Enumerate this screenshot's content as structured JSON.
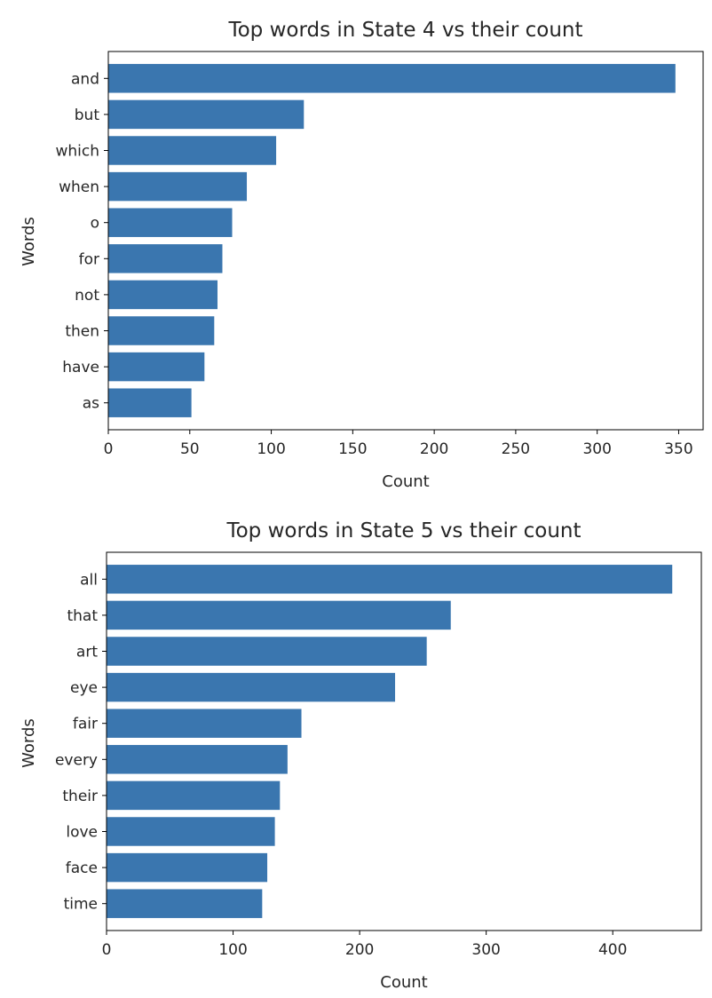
{
  "chart_data": [
    {
      "type": "bar",
      "orientation": "horizontal",
      "title": "Top words in State 4 vs their count",
      "xlabel": "Count",
      "ylabel": "Words",
      "categories": [
        "and",
        "but",
        "which",
        "when",
        "o",
        "for",
        "not",
        "then",
        "have",
        "as"
      ],
      "values": [
        348,
        120,
        103,
        85,
        76,
        70,
        67,
        65,
        59,
        51
      ],
      "xlim": [
        0,
        365
      ],
      "xticks": [
        0,
        50,
        100,
        150,
        200,
        250,
        300,
        350
      ],
      "xtick_labels": [
        "0",
        "50",
        "100",
        "150",
        "200",
        "250",
        "300",
        "350"
      ],
      "grid": false,
      "bar_color": "#3a76af"
    },
    {
      "type": "bar",
      "orientation": "horizontal",
      "title": "Top words in State 5 vs their count",
      "xlabel": "Count",
      "ylabel": "Words",
      "categories": [
        "all",
        "that",
        "art",
        "eye",
        "fair",
        "every",
        "their",
        "love",
        "face",
        "time"
      ],
      "values": [
        447,
        272,
        253,
        228,
        154,
        143,
        137,
        133,
        127,
        123
      ],
      "xlim": [
        0,
        470
      ],
      "xticks": [
        0,
        100,
        200,
        300,
        400
      ],
      "xtick_labels": [
        "0",
        "100",
        "200",
        "300",
        "400"
      ],
      "grid": false,
      "bar_color": "#3a76af"
    }
  ]
}
